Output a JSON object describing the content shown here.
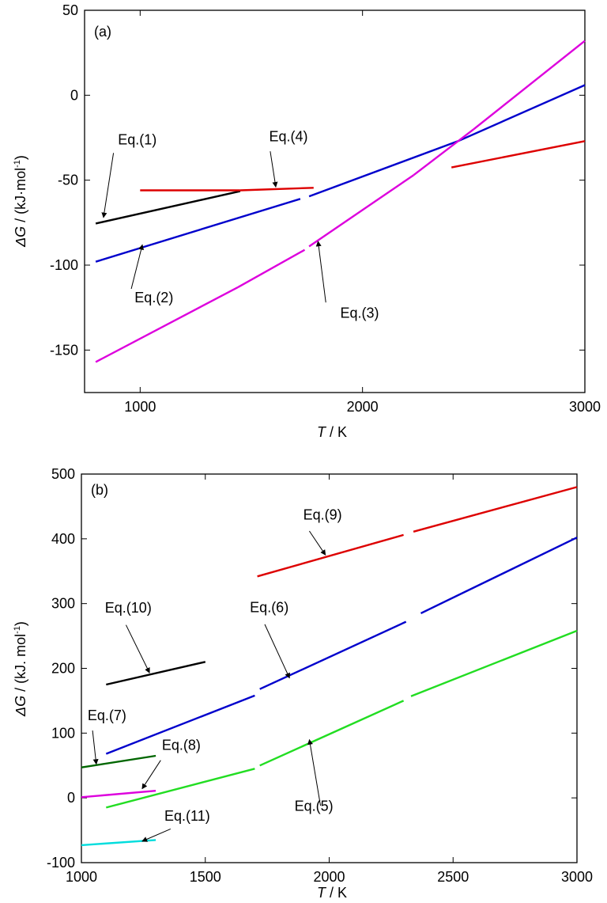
{
  "chart_data": [
    {
      "type": "line",
      "panel_label": "(a)",
      "xlabel": {
        "symbol": "T",
        "unit": " / K"
      },
      "ylabel": {
        "symbol": "ΔG",
        "unit": " / (kJ·mol",
        "exp": "-1",
        "close": ")"
      },
      "xlim": [
        750,
        3000
      ],
      "ylim": [
        -175,
        50
      ],
      "xticks": [
        {
          "value": 1000,
          "label": "1000"
        },
        {
          "value": 2000,
          "label": "2000"
        },
        {
          "value": 3000,
          "label": "3000"
        }
      ],
      "yticks": [
        {
          "value": 50,
          "label": "50"
        },
        {
          "value": 0,
          "label": "0"
        },
        {
          "value": -50,
          "label": "-50"
        },
        {
          "value": -100,
          "label": "-100"
        },
        {
          "value": -150,
          "label": "-150"
        }
      ],
      "series": [
        {
          "name": "Eq.(1)",
          "color": "#000000",
          "segments": [
            [
              [
                800,
                -75.5
              ],
              [
                1450,
                -56.5
              ]
            ]
          ]
        },
        {
          "name": "Eq.(2)",
          "color": "#0000cc",
          "segments": [
            [
              [
                800,
                -98
              ],
              [
                1720,
                -61
              ]
            ],
            [
              [
                1760,
                -59.5
              ],
              [
                2430,
                -27
              ]
            ],
            [
              [
                2430,
                -27
              ],
              [
                3000,
                6
              ]
            ]
          ]
        },
        {
          "name": "Eq.(3)",
          "color": "#dd00dd",
          "segments": [
            [
              [
                800,
                -157
              ],
              [
                1440,
                -113
              ]
            ],
            [
              [
                1440,
                -113
              ],
              [
                1740,
                -91
              ]
            ],
            [
              [
                1760,
                -89
              ],
              [
                2230,
                -47
              ]
            ],
            [
              [
                2230,
                -47
              ],
              [
                2500,
                -20
              ]
            ],
            [
              [
                2500,
                -20
              ],
              [
                3000,
                32
              ]
            ]
          ]
        },
        {
          "name": "Eq.(4)",
          "color": "#dd0000",
          "segments": [
            [
              [
                1000,
                -56
              ],
              [
                1450,
                -56
              ]
            ],
            [
              [
                1450,
                -56
              ],
              [
                1780,
                -54.5
              ]
            ],
            [
              [
                2400,
                -42.5
              ],
              [
                3000,
                -27
              ]
            ]
          ]
        }
      ],
      "annotations": [
        {
          "text": "Eq.(1)",
          "x": 900,
          "y": -29,
          "arrow_from": [
            880,
            -34
          ],
          "arrow_to": [
            835,
            -72
          ]
        },
        {
          "text": "Eq.(2)",
          "x": 975,
          "y": -122,
          "arrow_from": [
            960,
            -114
          ],
          "arrow_to": [
            1010,
            -88
          ]
        },
        {
          "text": "Eq.(3)",
          "x": 1900,
          "y": -131,
          "arrow_from": [
            1835,
            -122
          ],
          "arrow_to": [
            1800,
            -86
          ]
        },
        {
          "text": "Eq.(4)",
          "x": 1580,
          "y": -27,
          "arrow_from": [
            1585,
            -33
          ],
          "arrow_to": [
            1610,
            -54
          ]
        }
      ]
    },
    {
      "type": "line",
      "panel_label": "(b)",
      "xlabel": {
        "symbol": "T",
        "unit": " / K"
      },
      "ylabel": {
        "symbol": "ΔG",
        "unit": " / (kJ. mol",
        "exp": "-1",
        "close": ")"
      },
      "xlim": [
        1000,
        3000
      ],
      "ylim": [
        -100,
        500
      ],
      "xticks": [
        {
          "value": 1000,
          "label": "1000"
        },
        {
          "value": 1500,
          "label": "1500"
        },
        {
          "value": 2000,
          "label": "2000"
        },
        {
          "value": 2500,
          "label": "2500"
        },
        {
          "value": 3000,
          "label": "3000"
        }
      ],
      "yticks": [
        {
          "value": 500,
          "label": "500"
        },
        {
          "value": 400,
          "label": "400"
        },
        {
          "value": 300,
          "label": "300"
        },
        {
          "value": 200,
          "label": "200"
        },
        {
          "value": 100,
          "label": "100"
        },
        {
          "value": 0,
          "label": "0"
        },
        {
          "value": -100,
          "label": "-100"
        }
      ],
      "series": [
        {
          "name": "Eq.(5)",
          "color": "#22dd22",
          "segments": [
            [
              [
                1100,
                -15
              ],
              [
                1700,
                45
              ]
            ],
            [
              [
                1720,
                50
              ],
              [
                2300,
                150
              ]
            ],
            [
              [
                2330,
                157
              ],
              [
                3000,
                258
              ]
            ]
          ]
        },
        {
          "name": "Eq.(6)",
          "color": "#0000cc",
          "segments": [
            [
              [
                1100,
                68
              ],
              [
                1700,
                158
              ]
            ],
            [
              [
                1720,
                168
              ],
              [
                2310,
                272
              ]
            ],
            [
              [
                2370,
                285
              ],
              [
                3000,
                402
              ]
            ]
          ]
        },
        {
          "name": "Eq.(7)",
          "color": "#006600",
          "segments": [
            [
              [
                1000,
                47
              ],
              [
                1300,
                65
              ]
            ]
          ]
        },
        {
          "name": "Eq.(8)",
          "color": "#dd00dd",
          "segments": [
            [
              [
                1000,
                1
              ],
              [
                1300,
                11
              ]
            ]
          ]
        },
        {
          "name": "Eq.(9)",
          "color": "#dd0000",
          "segments": [
            [
              [
                1710,
                342
              ],
              [
                2300,
                406
              ]
            ],
            [
              [
                2340,
                411
              ],
              [
                3000,
                480
              ]
            ]
          ]
        },
        {
          "name": "Eq.(10)",
          "color": "#000000",
          "segments": [
            [
              [
                1100,
                175
              ],
              [
                1500,
                210
              ]
            ]
          ]
        },
        {
          "name": "Eq.(11)",
          "color": "#00dddd",
          "segments": [
            [
              [
                1000,
                -73
              ],
              [
                1300,
                -65
              ]
            ]
          ]
        }
      ],
      "annotations": [
        {
          "text": "Eq.(9)",
          "x": 1895,
          "y": 430,
          "arrow_from": [
            1920,
            412
          ],
          "arrow_to": [
            1985,
            375
          ]
        },
        {
          "text": "Eq.(10)",
          "x": 1095,
          "y": 286,
          "arrow_from": [
            1180,
            267
          ],
          "arrow_to": [
            1275,
            193
          ]
        },
        {
          "text": "Eq.(6)",
          "x": 1680,
          "y": 287,
          "arrow_from": [
            1740,
            268
          ],
          "arrow_to": [
            1840,
            185
          ]
        },
        {
          "text": "Eq.(7)",
          "x": 1025,
          "y": 120,
          "arrow_from": [
            1045,
            104
          ],
          "arrow_to": [
            1060,
            52
          ]
        },
        {
          "text": "Eq.(8)",
          "x": 1325,
          "y": 74,
          "arrow_from": [
            1320,
            58
          ],
          "arrow_to": [
            1245,
            14
          ]
        },
        {
          "text": "Eq.(5)",
          "x": 1860,
          "y": -20,
          "arrow_from": [
            1965,
            -12
          ],
          "arrow_to": [
            1920,
            90
          ]
        },
        {
          "text": "Eq.(11)",
          "x": 1335,
          "y": -35,
          "arrow_from": [
            1360,
            -48
          ],
          "arrow_to": [
            1245,
            -67
          ]
        }
      ]
    }
  ]
}
